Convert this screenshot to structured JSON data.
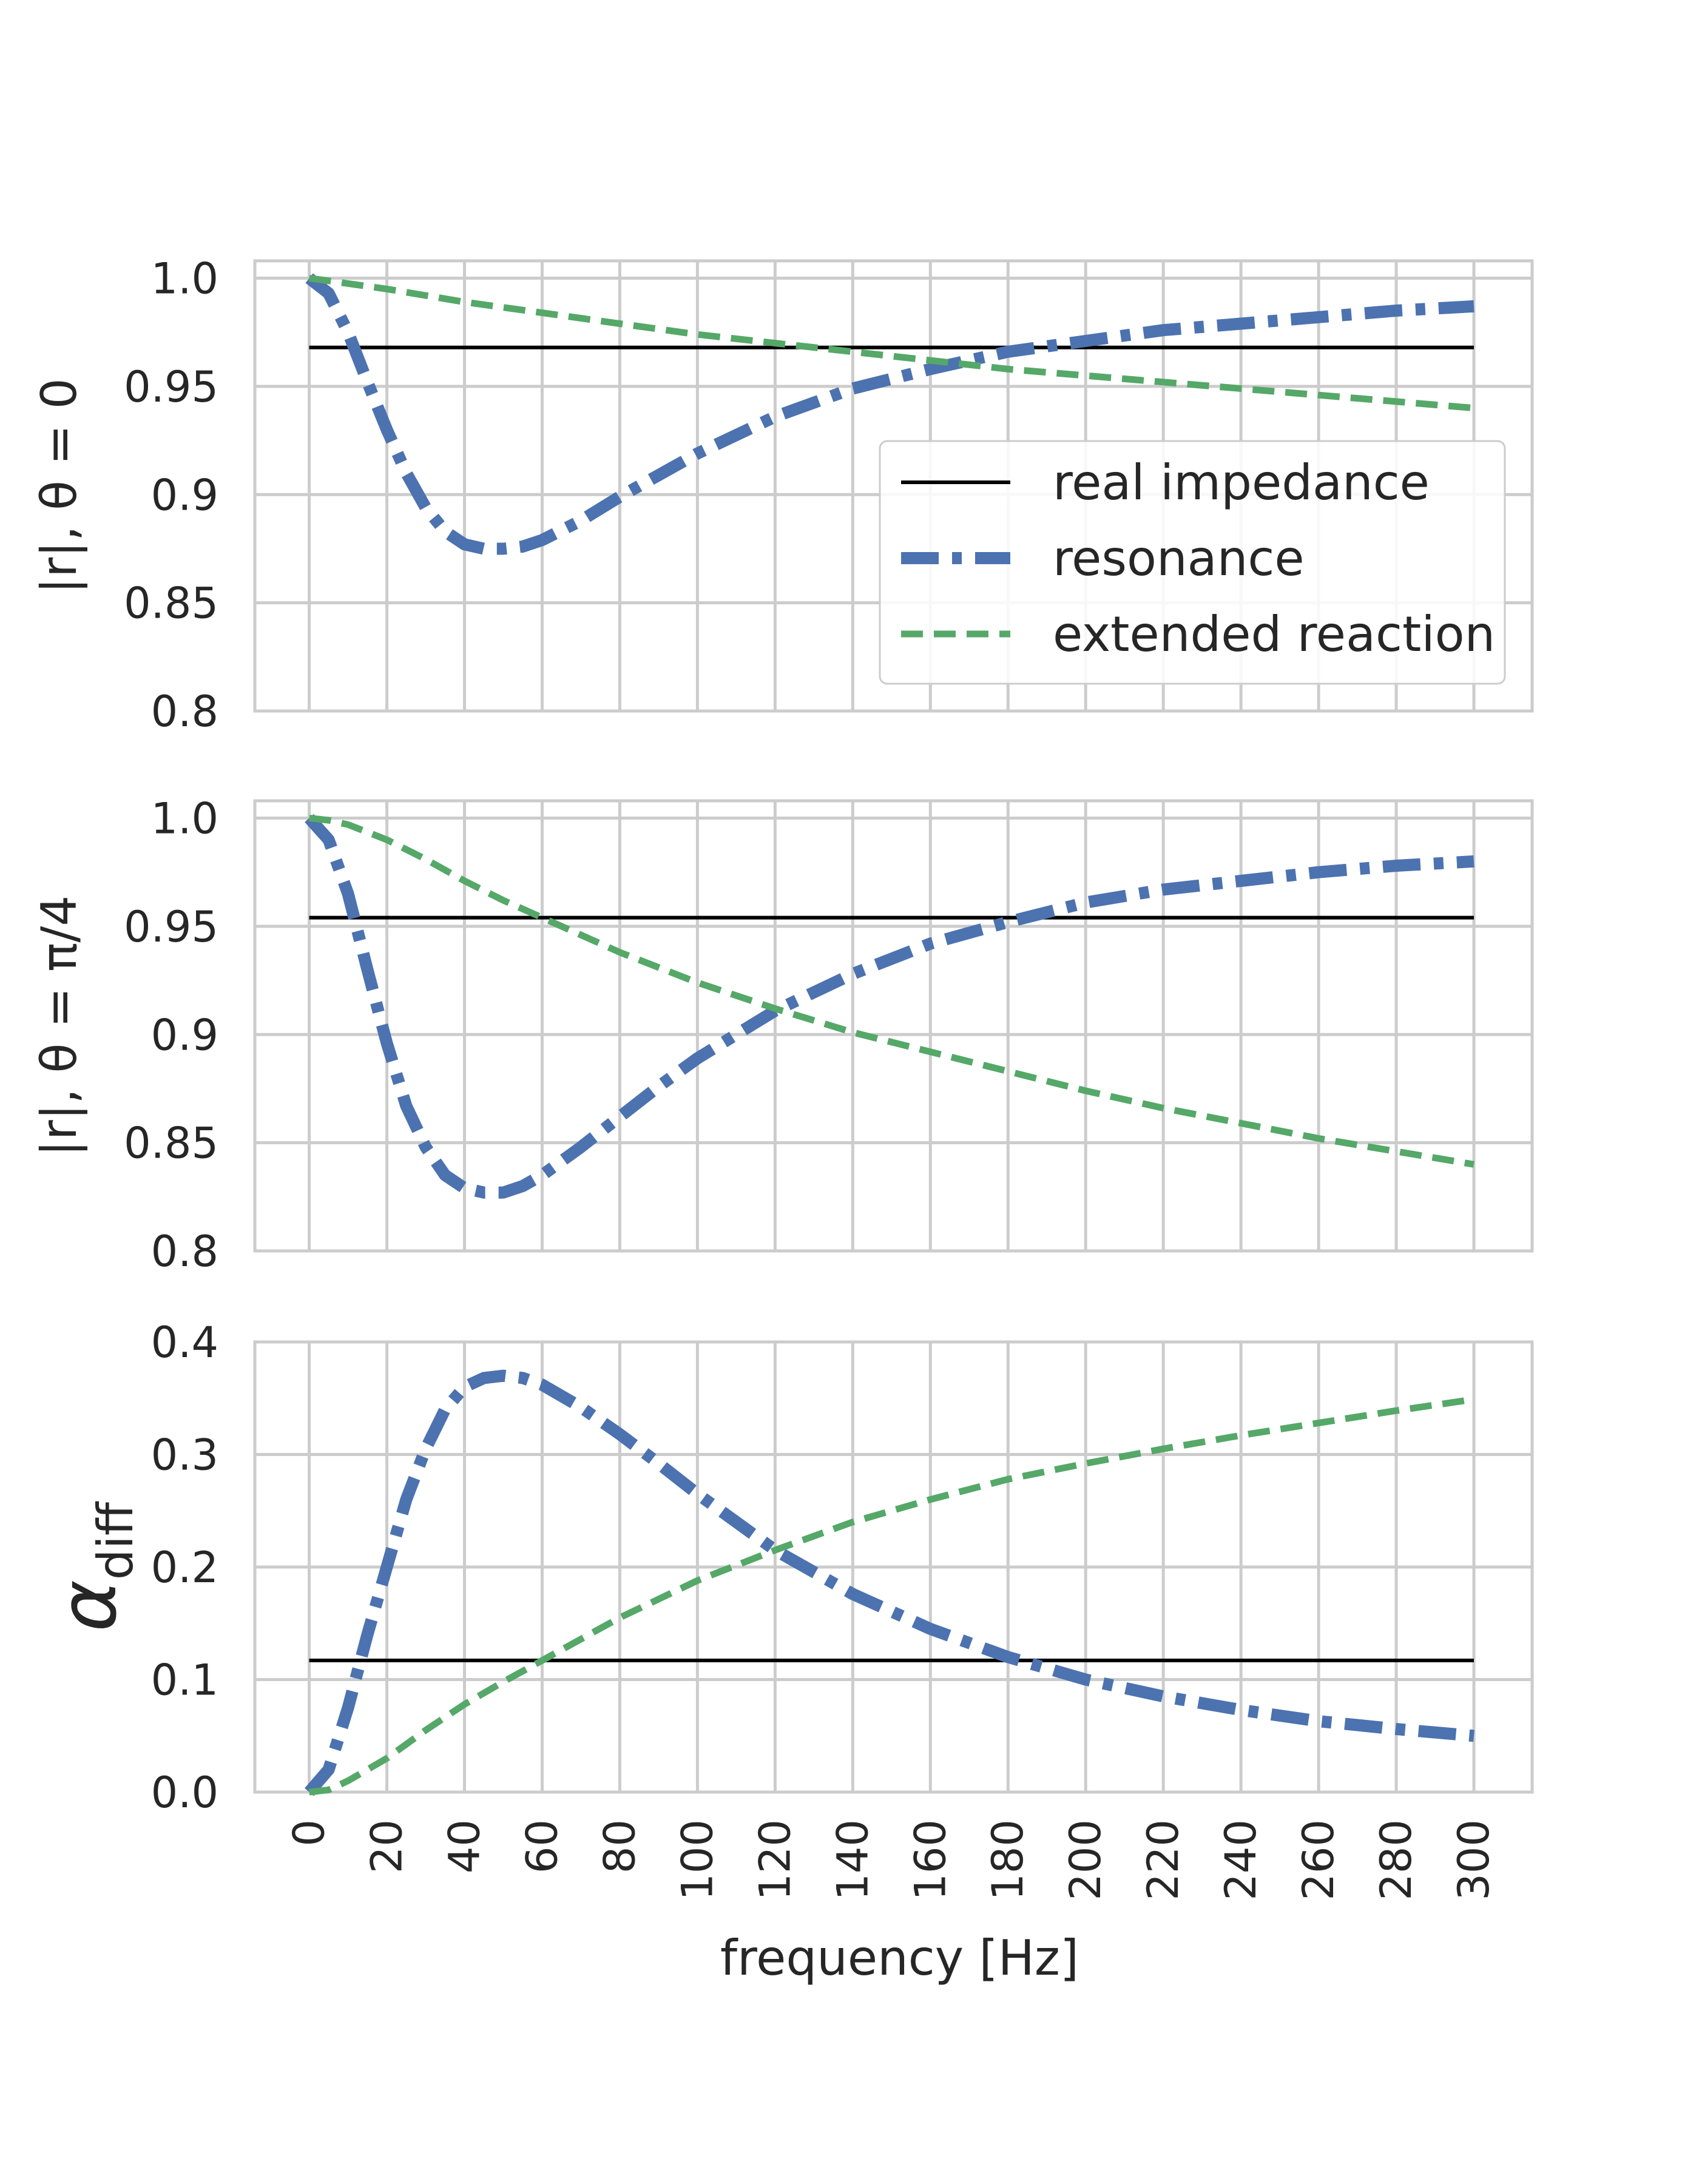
{
  "colors": {
    "real_impedance": "#000000",
    "resonance": "#4c72b0",
    "extended_reaction": "#55a868",
    "grid": "#cccccc",
    "text": "#262626"
  },
  "legend": {
    "location": "right",
    "entries": [
      "real impedance",
      "resonance",
      "extended reaction"
    ]
  },
  "xaxis": {
    "label": "frequency [Hz]",
    "ticks": [
      0,
      20,
      40,
      60,
      80,
      100,
      120,
      140,
      160,
      180,
      200,
      220,
      240,
      260,
      280,
      300
    ],
    "tick_labels": [
      "0",
      "20",
      "40",
      "60",
      "80",
      "100",
      "120",
      "140",
      "160",
      "180",
      "200",
      "220",
      "240",
      "260",
      "280",
      "300"
    ],
    "xlim": [
      -14,
      315
    ]
  },
  "chart_data": [
    {
      "type": "line",
      "ylabel": "|r|, θ = 0",
      "ylim": [
        0.8,
        1.008
      ],
      "yticks": [
        0.8,
        0.85,
        0.9,
        0.95,
        1.0
      ],
      "ytick_labels": [
        "0.8",
        "0.85",
        "0.9",
        "0.95",
        "1.0"
      ],
      "grid": true,
      "series": [
        {
          "name": "real impedance",
          "style": "solid",
          "x": [
            0,
            300
          ],
          "y": [
            0.968,
            0.968
          ]
        },
        {
          "name": "resonance",
          "style": "dashdot",
          "x": [
            0,
            5,
            10,
            15,
            20,
            25,
            30,
            35,
            40,
            45,
            50,
            55,
            60,
            70,
            80,
            90,
            100,
            120,
            140,
            160,
            180,
            200,
            220,
            240,
            260,
            280,
            300
          ],
          "y": [
            1.0,
            0.993,
            0.975,
            0.952,
            0.93,
            0.91,
            0.894,
            0.883,
            0.877,
            0.875,
            0.875,
            0.876,
            0.879,
            0.888,
            0.899,
            0.909,
            0.919,
            0.936,
            0.949,
            0.958,
            0.966,
            0.971,
            0.976,
            0.979,
            0.982,
            0.985,
            0.987
          ]
        },
        {
          "name": "extended reaction",
          "style": "dashed",
          "x": [
            0,
            20,
            40,
            60,
            80,
            100,
            120,
            140,
            160,
            180,
            200,
            220,
            240,
            260,
            280,
            300
          ],
          "y": [
            1.0,
            0.995,
            0.989,
            0.984,
            0.979,
            0.974,
            0.97,
            0.966,
            0.962,
            0.958,
            0.955,
            0.952,
            0.949,
            0.946,
            0.943,
            0.94
          ]
        }
      ]
    },
    {
      "type": "line",
      "ylabel": "|r|, θ = π/4",
      "ylim": [
        0.8,
        1.008
      ],
      "yticks": [
        0.8,
        0.85,
        0.9,
        0.95,
        1.0
      ],
      "ytick_labels": [
        "0.8",
        "0.85",
        "0.9",
        "0.95",
        "1.0"
      ],
      "grid": true,
      "series": [
        {
          "name": "real impedance",
          "style": "solid",
          "x": [
            0,
            300
          ],
          "y": [
            0.954,
            0.954
          ]
        },
        {
          "name": "resonance",
          "style": "dashdot",
          "x": [
            0,
            5,
            10,
            15,
            20,
            25,
            30,
            35,
            40,
            45,
            50,
            55,
            60,
            70,
            80,
            90,
            100,
            120,
            140,
            160,
            180,
            200,
            220,
            240,
            260,
            280,
            300
          ],
          "y": [
            1.0,
            0.99,
            0.965,
            0.93,
            0.896,
            0.867,
            0.848,
            0.835,
            0.829,
            0.827,
            0.827,
            0.83,
            0.835,
            0.848,
            0.862,
            0.876,
            0.889,
            0.911,
            0.928,
            0.942,
            0.952,
            0.961,
            0.967,
            0.971,
            0.975,
            0.978,
            0.98
          ]
        },
        {
          "name": "extended reaction",
          "style": "dashed",
          "x": [
            0,
            5,
            10,
            20,
            30,
            40,
            50,
            60,
            80,
            100,
            120,
            140,
            160,
            180,
            200,
            220,
            240,
            260,
            280,
            300
          ],
          "y": [
            1.0,
            0.999,
            0.997,
            0.99,
            0.981,
            0.971,
            0.962,
            0.954,
            0.938,
            0.924,
            0.912,
            0.901,
            0.892,
            0.883,
            0.874,
            0.866,
            0.859,
            0.852,
            0.846,
            0.84
          ]
        }
      ]
    },
    {
      "type": "line",
      "ylabel": "αdiff",
      "ylabel_main": "α",
      "ylabel_sub": "diff",
      "ylim": [
        0.0,
        0.4
      ],
      "yticks": [
        0.0,
        0.1,
        0.2,
        0.3,
        0.4
      ],
      "ytick_labels": [
        "0.0",
        "0.1",
        "0.2",
        "0.3",
        "0.4"
      ],
      "grid": true,
      "series": [
        {
          "name": "real impedance",
          "style": "solid",
          "x": [
            0,
            300
          ],
          "y": [
            0.117,
            0.117
          ]
        },
        {
          "name": "resonance",
          "style": "dashdot",
          "x": [
            0,
            5,
            10,
            15,
            20,
            25,
            30,
            35,
            40,
            45,
            50,
            55,
            60,
            70,
            80,
            90,
            100,
            120,
            140,
            160,
            180,
            200,
            220,
            240,
            260,
            280,
            300
          ],
          "y": [
            0.0,
            0.02,
            0.075,
            0.14,
            0.2,
            0.26,
            0.305,
            0.34,
            0.36,
            0.368,
            0.37,
            0.368,
            0.362,
            0.342,
            0.318,
            0.292,
            0.265,
            0.215,
            0.176,
            0.145,
            0.12,
            0.1,
            0.085,
            0.073,
            0.063,
            0.056,
            0.05
          ]
        },
        {
          "name": "extended reaction",
          "style": "dashed",
          "x": [
            0,
            5,
            10,
            20,
            30,
            40,
            50,
            60,
            80,
            100,
            120,
            140,
            160,
            180,
            200,
            220,
            240,
            260,
            280,
            300
          ],
          "y": [
            0.0,
            0.002,
            0.01,
            0.03,
            0.055,
            0.078,
            0.098,
            0.117,
            0.155,
            0.188,
            0.215,
            0.24,
            0.26,
            0.278,
            0.292,
            0.305,
            0.317,
            0.328,
            0.339,
            0.349
          ]
        }
      ]
    }
  ]
}
